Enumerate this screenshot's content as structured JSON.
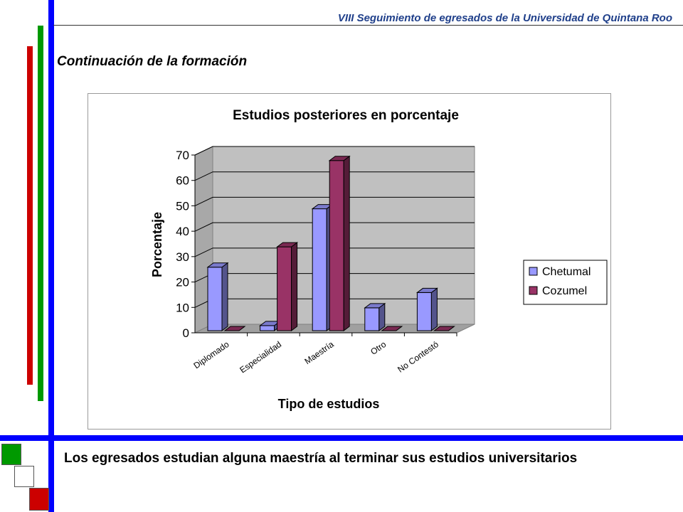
{
  "slide": {
    "header": "VIII Seguimiento de egresados de la Universidad de Quintana Roo",
    "section_title": "Continuación de la formación",
    "body_text": "Los egresados estudian alguna maestría al terminar sus estudios universitarios"
  },
  "colors": {
    "chetumal": "#9999ff",
    "cozumel": "#993366",
    "blue_bar": "#0000ff",
    "green_bar": "#009900",
    "red_bar": "#cc0000"
  },
  "chart_data": {
    "type": "bar",
    "title": "Estudios posteriores en porcentaje",
    "xlabel": "Tipo de estudios",
    "ylabel": "Porcentaje",
    "ylim": [
      0,
      70
    ],
    "yticks": [
      0,
      10,
      20,
      30,
      40,
      50,
      60,
      70
    ],
    "categories": [
      "Diplomado",
      "Especialidad",
      "Maestría",
      "Otro",
      "No Contestó"
    ],
    "series": [
      {
        "name": "Chetumal",
        "values": [
          25,
          2,
          48,
          9,
          15
        ]
      },
      {
        "name": "Cozumel",
        "values": [
          0,
          33,
          67,
          0,
          0
        ]
      }
    ],
    "legend_position": "right",
    "grid": true,
    "style": "3d-clustered-column"
  }
}
